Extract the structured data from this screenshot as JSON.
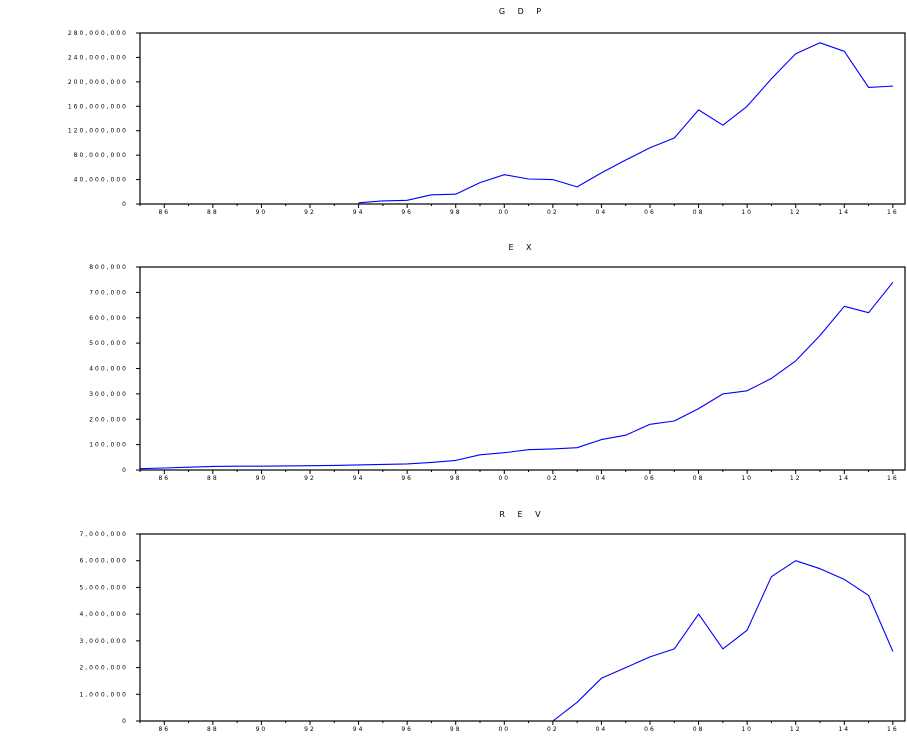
{
  "chart_data": [
    {
      "type": "line",
      "title": "G D P",
      "xlabel": "",
      "ylabel": "",
      "x_ticks": [
        "86",
        "88",
        "90",
        "92",
        "94",
        "96",
        "98",
        "00",
        "02",
        "04",
        "06",
        "08",
        "10",
        "12",
        "14",
        "16"
      ],
      "y_ticks": [
        "0",
        "40,000,000",
        "80,000,000",
        "120,000,000",
        "160,000,000",
        "200,000,000",
        "240,000,000",
        "280,000,000"
      ],
      "ylim": [
        0,
        280000000
      ],
      "xlim": [
        1985,
        2016.5
      ],
      "line_color": "#0000ff",
      "series": [
        {
          "x": [
            1994,
            1995,
            1996,
            1997,
            1998,
            1999,
            2000,
            2001,
            2002,
            2003,
            2004,
            2005,
            2006,
            2007,
            2008,
            2009,
            2010,
            2011,
            2012,
            2013,
            2014,
            2015,
            2016
          ],
          "values": [
            2000000,
            5000000,
            6000000,
            15000000,
            16000000,
            35000000,
            48000000,
            41000000,
            40000000,
            28000000,
            51000000,
            72000000,
            92000000,
            108000000,
            154000000,
            129000000,
            160000000,
            205000000,
            246000000,
            264000000,
            250000000,
            191000000,
            193000000
          ]
        }
      ]
    },
    {
      "type": "line",
      "title": "E X",
      "xlabel": "",
      "ylabel": "",
      "x_ticks": [
        "86",
        "88",
        "90",
        "92",
        "94",
        "96",
        "98",
        "00",
        "02",
        "04",
        "06",
        "08",
        "10",
        "12",
        "14",
        "16"
      ],
      "y_ticks": [
        "0",
        "100,000",
        "200,000",
        "300,000",
        "400,000",
        "500,000",
        "600,000",
        "700,000",
        "800,000"
      ],
      "ylim": [
        0,
        800000
      ],
      "xlim": [
        1985,
        2016.5
      ],
      "line_color": "#0000ff",
      "series": [
        {
          "x": [
            1985,
            1986,
            1987,
            1988,
            1989,
            1990,
            1991,
            1992,
            1993,
            1994,
            1995,
            1996,
            1997,
            1998,
            1999,
            2000,
            2001,
            2002,
            2003,
            2004,
            2005,
            2006,
            2007,
            2008,
            2009,
            2010,
            2011,
            2012,
            2013,
            2014,
            2015,
            2016
          ],
          "values": [
            5000,
            8000,
            11000,
            14000,
            15000,
            15000,
            16000,
            17000,
            18000,
            20000,
            22000,
            24000,
            30000,
            38000,
            60000,
            68000,
            80000,
            83000,
            88000,
            120000,
            137000,
            180000,
            193000,
            242000,
            300000,
            312000,
            361000,
            430000,
            530000,
            645000,
            620000,
            740000
          ]
        }
      ]
    },
    {
      "type": "line",
      "title": "R E V",
      "xlabel": "",
      "ylabel": "",
      "x_ticks": [
        "86",
        "88",
        "90",
        "92",
        "94",
        "96",
        "98",
        "00",
        "02",
        "04",
        "06",
        "08",
        "10",
        "12",
        "14",
        "16"
      ],
      "y_ticks": [
        "0",
        "1,000,000",
        "2,000,000",
        "3,000,000",
        "4,000,000",
        "5,000,000",
        "6,000,000",
        "7,000,000"
      ],
      "ylim": [
        0,
        7000000
      ],
      "xlim": [
        1985,
        2016.5
      ],
      "line_color": "#0000ff",
      "series": [
        {
          "x": [
            2002,
            2003,
            2004,
            2005,
            2006,
            2007,
            2008,
            2009,
            2010,
            2011,
            2012,
            2013,
            2014,
            2015,
            2016
          ],
          "values": [
            0,
            700000,
            1600000,
            2000000,
            2400000,
            2700000,
            4000000,
            2700000,
            3400000,
            5400000,
            6000000,
            5700000,
            5300000,
            4700000,
            2600000
          ]
        }
      ]
    }
  ]
}
